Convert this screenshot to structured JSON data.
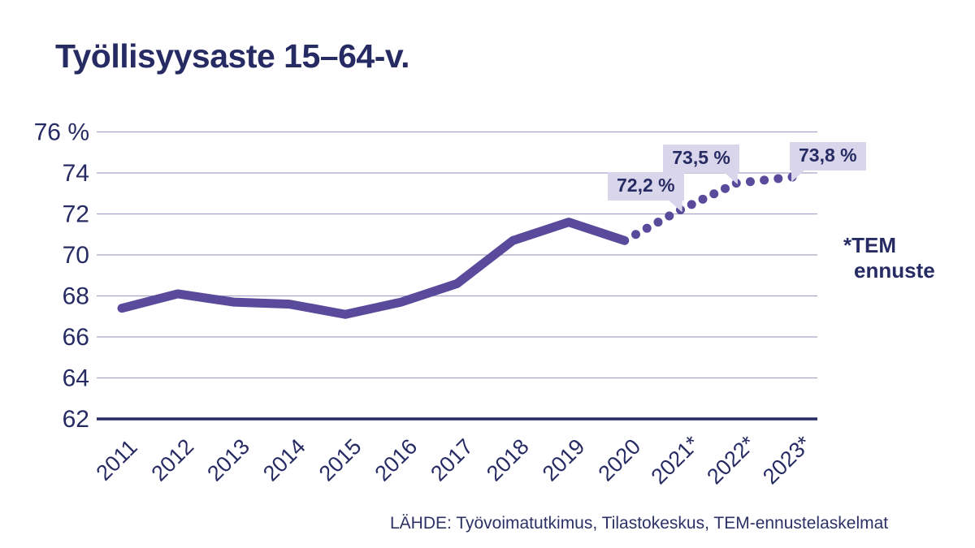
{
  "title": "Työllisyysaste 15–64-v.",
  "source": "LÄHDE: Työvoimatutkimus, Tilastokeskus, TEM-ennustelaskelmat",
  "forecast_note": {
    "line1": "*TEM",
    "line2": "ennuste"
  },
  "colors": {
    "background": "#ffffff",
    "text_navy": "#272b63",
    "line_purple": "#5a4a9c",
    "gridline": "#a9a5c7",
    "axis_line": "#272b63",
    "callout_bg": "#d9d6eb"
  },
  "chart_data": {
    "type": "line",
    "title": "Työllisyysaste 15–64-v.",
    "unit": "%",
    "ylim": [
      62,
      76
    ],
    "grid": true,
    "yticks": [
      76,
      74,
      72,
      70,
      68,
      66,
      64,
      62
    ],
    "ytick_labels": [
      "76 %",
      "74",
      "72",
      "70",
      "68",
      "66",
      "64",
      "62"
    ],
    "categories": [
      "2011",
      "2012",
      "2013",
      "2014",
      "2015",
      "2016",
      "2017",
      "2018",
      "2019",
      "2020",
      "2021*",
      "2022*",
      "2023*"
    ],
    "series": [
      {
        "name": "Työllisyysaste",
        "style": "solid",
        "years": [
          2011,
          2012,
          2013,
          2014,
          2015,
          2016,
          2017,
          2018,
          2019,
          2020
        ],
        "values": [
          67.4,
          68.1,
          67.7,
          67.6,
          67.1,
          67.7,
          68.6,
          70.7,
          71.6,
          70.7
        ]
      },
      {
        "name": "TEM ennuste",
        "style": "dotted",
        "years": [
          2020,
          2021,
          2022,
          2023
        ],
        "values": [
          70.7,
          72.2,
          73.5,
          73.8
        ]
      }
    ],
    "annotations": [
      {
        "year": 2021,
        "value": 72.2,
        "label": "72,2 %"
      },
      {
        "year": 2022,
        "value": 73.5,
        "label": "73,5 %"
      },
      {
        "year": 2023,
        "value": 73.8,
        "label": "73,8 %"
      }
    ]
  }
}
